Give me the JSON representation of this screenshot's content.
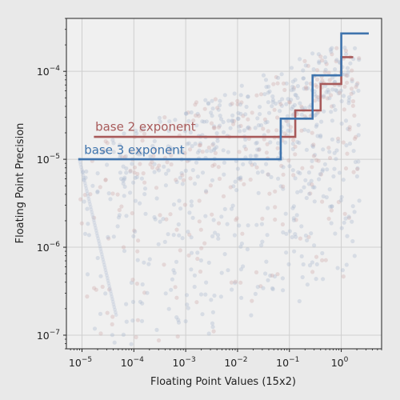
{
  "chart_data": {
    "type": "line",
    "title": "",
    "xlabel": "Floating Point Values (15x2)",
    "ylabel": "Floating Point Precision",
    "xscale": "log",
    "yscale": "log",
    "xlim": [
      5e-06,
      6
    ],
    "ylim": [
      7e-08,
      0.0004
    ],
    "grid": true,
    "x_ticks": [
      {
        "value": 1e-05,
        "base": "10",
        "exp": "−5"
      },
      {
        "value": 0.0001,
        "base": "10",
        "exp": "−4"
      },
      {
        "value": 0.001,
        "base": "10",
        "exp": "−3"
      },
      {
        "value": 0.01,
        "base": "10",
        "exp": "−2"
      },
      {
        "value": 0.1,
        "base": "10",
        "exp": "−1"
      },
      {
        "value": 1,
        "base": "10",
        "exp": "0"
      }
    ],
    "y_ticks": [
      {
        "value": 1e-07,
        "base": "10",
        "exp": "−7"
      },
      {
        "value": 1e-06,
        "base": "10",
        "exp": "−6"
      },
      {
        "value": 1e-05,
        "base": "10",
        "exp": "−5"
      },
      {
        "value": 0.0001,
        "base": "10",
        "exp": "−4"
      }
    ],
    "series": [
      {
        "name": "base 2 exponent",
        "color": "#a85a5a",
        "label_at": [
          1.8e-05,
          2.1e-05
        ],
        "steps": [
          [
            1.7e-05,
            1.8e-05
          ],
          [
            0.13,
            1.8e-05
          ],
          [
            0.13,
            3.6e-05
          ],
          [
            0.4,
            3.6e-05
          ],
          [
            0.4,
            7.2e-05
          ],
          [
            1.0,
            7.2e-05
          ],
          [
            1.0,
            0.000145
          ],
          [
            1.7,
            0.000145
          ]
        ]
      },
      {
        "name": "base 3 exponent",
        "color": "#3f74ad",
        "label_at": [
          1.1e-05,
          1.15e-05
        ],
        "steps": [
          [
            8.5e-06,
            1e-05
          ],
          [
            0.068,
            1e-05
          ],
          [
            0.068,
            2.9e-05
          ],
          [
            0.28,
            2.9e-05
          ],
          [
            0.28,
            9e-05
          ],
          [
            1.0,
            9e-05
          ],
          [
            1.0,
            0.00027
          ],
          [
            3.4,
            0.00027
          ]
        ]
      }
    ],
    "background_scatter": {
      "colors": [
        "#a9b6cf",
        "#cfa9a9"
      ],
      "note_count": 900
    }
  }
}
